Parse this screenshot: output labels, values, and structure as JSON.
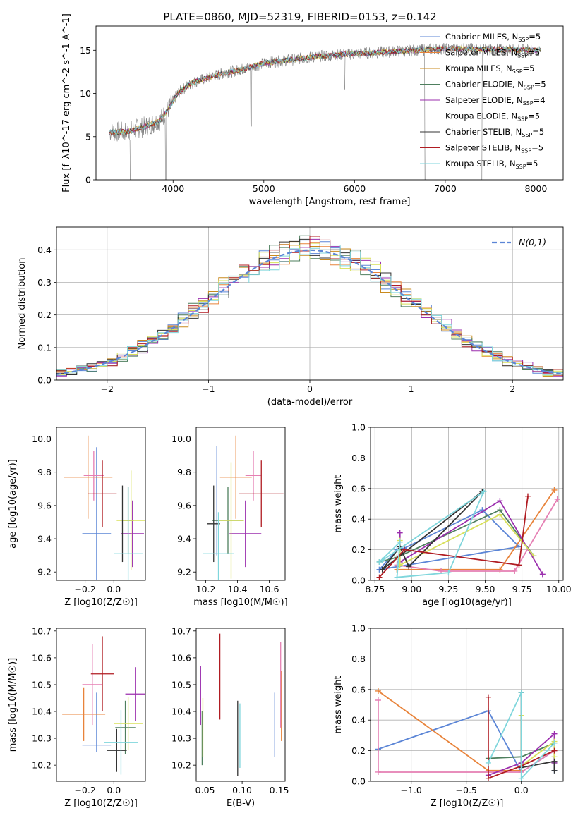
{
  "title": "PLATE=0860, MJD=52319, FIBERID=0153, z=0.142",
  "colors": {
    "chab_miles": "#5b85d6",
    "salp_miles": "#e8833a",
    "krou_miles": "#c98a1e",
    "chab_elodie": "#4e7f5e",
    "salp_elodie": "#9b2fae",
    "krou_elodie": "#d8e05a",
    "chab_stelib": "#333333",
    "salp_stelib": "#b01c22",
    "krou_stelib": "#7fd6dc",
    "pink": "#e57fb3",
    "gray_spec": "#7f7f7f",
    "normal": "#5b85d6",
    "grid": "#b0b0b0"
  },
  "chart_data": [
    {
      "id": "spectrum",
      "type": "line",
      "xlabel": "wavelength [Angstrom, rest frame]",
      "ylabel": "Flux [f_λ10^-17 erg cm^-2 s^-1 A^-1]",
      "xlim": [
        3150,
        8300
      ],
      "ylim": [
        0,
        17.8
      ],
      "xticks": [
        4000,
        5000,
        6000,
        7000,
        8000
      ],
      "yticks": [
        0,
        5,
        10,
        15
      ],
      "legend_position": "top-right",
      "continuum": [
        [
          3300,
          5.5
        ],
        [
          3500,
          5.6
        ],
        [
          3700,
          6.2
        ],
        [
          3850,
          6.8
        ],
        [
          3950,
          8.2
        ],
        [
          4050,
          10.0
        ],
        [
          4200,
          11.2
        ],
        [
          4500,
          12.2
        ],
        [
          4800,
          12.9
        ],
        [
          5000,
          13.5
        ],
        [
          5300,
          13.9
        ],
        [
          5600,
          14.3
        ],
        [
          6000,
          14.6
        ],
        [
          6500,
          14.9
        ],
        [
          7000,
          15.2
        ],
        [
          7500,
          15.1
        ],
        [
          8000,
          15.0
        ],
        [
          8050,
          15.0
        ]
      ],
      "dips": [
        [
          3530,
          0
        ],
        [
          3920,
          0
        ],
        [
          4860,
          6.2
        ],
        [
          5890,
          10.5
        ],
        [
          6780,
          0
        ],
        [
          7400,
          0
        ]
      ],
      "legend": [
        {
          "label": "Chabrier MILES, N_SSP=5",
          "color_key": "chab_miles"
        },
        {
          "label": "Salpeter MILES, N_SSP=5",
          "color_key": "salp_miles"
        },
        {
          "label": "Kroupa MILES, N_SSP=5",
          "color_key": "krou_miles"
        },
        {
          "label": "Chabrier ELODIE, N_SSP=5",
          "color_key": "chab_elodie"
        },
        {
          "label": "Salpeter ELODIE, N_SSP=4",
          "color_key": "salp_elodie"
        },
        {
          "label": "Kroupa ELODIE, N_SSP=5",
          "color_key": "krou_elodie"
        },
        {
          "label": "Chabrier STELIB, N_SSP=5",
          "color_key": "chab_stelib"
        },
        {
          "label": "Salpeter STELIB, N_SSP=5",
          "color_key": "salp_stelib"
        },
        {
          "label": "Kroupa STELIB, N_SSP=5",
          "color_key": "krou_stelib"
        }
      ]
    },
    {
      "id": "residuals",
      "type": "bar",
      "xlabel": "(data-model)/error",
      "ylabel": "Normed distribution",
      "xlim": [
        -2.5,
        2.5
      ],
      "ylim": [
        0,
        0.47
      ],
      "xticks": [
        -2,
        -1,
        0,
        1,
        2
      ],
      "yticks": [
        0.0,
        0.1,
        0.2,
        0.3,
        0.4
      ],
      "legend": [
        {
          "label": "N(0,1)",
          "color_key": "normal"
        }
      ],
      "legend_position": "top-right",
      "bin_width": 0.1,
      "bin_start": -2.5
    },
    {
      "id": "z_age",
      "type": "scatter",
      "xlabel": "Z [log10(Z/Z☉)]",
      "ylabel": "age  [log10(age/yr)]",
      "xlim": [
        -0.4,
        0.22
      ],
      "ylim": [
        9.15,
        10.07
      ],
      "xticks": [
        -0.2,
        0.0
      ],
      "yticks": [
        9.2,
        9.4,
        9.6,
        9.8,
        10.0
      ],
      "points": [
        {
          "color_key": "chab_miles",
          "x": -0.12,
          "xe": 0.1,
          "y": 9.43,
          "ye": 0.52
        },
        {
          "color_key": "salp_miles",
          "x": -0.18,
          "xe": 0.17,
          "y": 9.77,
          "ye": 0.25
        },
        {
          "color_key": "pink",
          "x": -0.14,
          "xe": 0.07,
          "y": 9.78,
          "ye": 0.15
        },
        {
          "color_key": "chab_elodie",
          "x": 0.1,
          "xe": 0.04,
          "y": 9.51,
          "ye": 0.2
        },
        {
          "color_key": "salp_elodie",
          "x": 0.13,
          "xe": 0.08,
          "y": 9.43,
          "ye": 0.2
        },
        {
          "color_key": "krou_elodie",
          "x": 0.12,
          "xe": 0.1,
          "y": 9.51,
          "ye": 0.3
        },
        {
          "color_key": "chab_stelib",
          "x": 0.06,
          "xe": 0.0,
          "y": 9.49,
          "ye": 0.23
        },
        {
          "color_key": "salp_stelib",
          "x": -0.08,
          "xe": 0.1,
          "y": 9.67,
          "ye": 0.2
        },
        {
          "color_key": "krou_stelib",
          "x": 0.1,
          "xe": 0.1,
          "y": 9.31,
          "ye": 0.4
        }
      ]
    },
    {
      "id": "mass_age",
      "type": "scatter",
      "xlabel": "mass [log10(M/M☉)]",
      "ylabel": "",
      "xlim": [
        10.14,
        10.7
      ],
      "ylim": [
        9.15,
        10.07
      ],
      "xticks": [
        10.2,
        10.4,
        10.6
      ],
      "yticks": [
        9.2,
        9.4,
        9.6,
        9.8,
        10.0
      ],
      "points": [
        {
          "color_key": "chab_miles",
          "x": 10.27,
          "xe": 0.0,
          "y": 9.63,
          "ye": 0.33
        },
        {
          "color_key": "salp_miles",
          "x": 10.39,
          "xe": 0.1,
          "y": 9.77,
          "ye": 0.25
        },
        {
          "color_key": "pink",
          "x": 10.5,
          "xe": 0.05,
          "y": 9.78,
          "ye": 0.15
        },
        {
          "color_key": "chab_elodie",
          "x": 10.34,
          "xe": 0.1,
          "y": 9.51,
          "ye": 0.2
        },
        {
          "color_key": "salp_elodie",
          "x": 10.45,
          "xe": 0.1,
          "y": 9.43,
          "ye": 0.2
        },
        {
          "color_key": "krou_elodie",
          "x": 10.36,
          "xe": 0.08,
          "y": 9.51,
          "ye": 0.35
        },
        {
          "color_key": "chab_stelib",
          "x": 10.25,
          "xe": 0.04,
          "y": 9.49,
          "ye": 0.23
        },
        {
          "color_key": "salp_stelib",
          "x": 10.55,
          "xe": 0.14,
          "y": 9.67,
          "ye": 0.2
        },
        {
          "color_key": "krou_stelib",
          "x": 10.28,
          "xe": 0.1,
          "y": 9.31,
          "ye": 0.25
        }
      ]
    },
    {
      "id": "age_weight",
      "type": "line",
      "xlabel": "age  [log10(age/yr)]",
      "ylabel": "mass weight",
      "xlim": [
        8.72,
        10.03
      ],
      "ylim": [
        0,
        1
      ],
      "xticks": [
        8.75,
        9.0,
        9.25,
        9.5,
        9.75,
        10.0
      ],
      "yticks": [
        0.0,
        0.2,
        0.4,
        0.6,
        0.8,
        1.0
      ],
      "series": [
        {
          "color_key": "chab_miles",
          "x": [
            8.78,
            8.9,
            8.95,
            9.48,
            9.73,
            8.78
          ],
          "y": [
            0.07,
            0.2,
            0.21,
            0.46,
            0.22,
            0.07
          ]
        },
        {
          "color_key": "salp_miles",
          "x": [
            8.9,
            8.9,
            9.6,
            9.97
          ],
          "y": [
            0.07,
            0.07,
            0.07,
            0.59
          ]
        },
        {
          "color_key": "pink",
          "x": [
            8.9,
            9.2,
            9.7,
            9.99
          ],
          "y": [
            0.1,
            0.06,
            0.06,
            0.53
          ]
        },
        {
          "color_key": "chab_elodie",
          "x": [
            8.78,
            8.9,
            9.6,
            9.83
          ],
          "y": [
            0.12,
            0.15,
            0.46,
            0.16
          ]
        },
        {
          "color_key": "salp_elodie",
          "x": [
            8.92,
            8.92,
            9.6,
            9.89
          ],
          "y": [
            0.31,
            0.12,
            0.52,
            0.04
          ]
        },
        {
          "color_key": "krou_elodie",
          "x": [
            8.92,
            8.92,
            9.6,
            9.83
          ],
          "y": [
            0.26,
            0.1,
            0.43,
            0.16
          ]
        },
        {
          "color_key": "chab_stelib",
          "x": [
            8.92,
            8.98,
            9.48,
            8.8,
            8.92
          ],
          "y": [
            0.22,
            0.09,
            0.58,
            0.07,
            0.22
          ]
        },
        {
          "color_key": "salp_stelib",
          "x": [
            8.78,
            8.95,
            9.73,
            9.79
          ],
          "y": [
            0.02,
            0.2,
            0.1,
            0.55
          ]
        },
        {
          "color_key": "krou_stelib",
          "x": [
            8.78,
            8.92,
            8.9,
            9.25,
            9.49,
            8.8
          ],
          "y": [
            0.12,
            0.25,
            0.02,
            0.05,
            0.58,
            0.13
          ]
        }
      ]
    },
    {
      "id": "z_mass",
      "type": "scatter",
      "xlabel": "Z [log10(Z/Z☉)]",
      "ylabel": "mass [log10(M/M☉)]",
      "xlim": [
        -0.4,
        0.22
      ],
      "ylim": [
        10.14,
        10.71
      ],
      "xticks": [
        -0.2,
        0.0
      ],
      "yticks": [
        10.2,
        10.3,
        10.4,
        10.5,
        10.6,
        10.7
      ],
      "points": [
        {
          "color_key": "chab_miles",
          "x": -0.12,
          "xe": 0.1,
          "y": 10.275,
          "ye": 0.0
        },
        {
          "color_key": "chab_miles",
          "x": -0.12,
          "xe": 0.0,
          "y": 10.36,
          "ye": 0.11
        },
        {
          "color_key": "salp_miles",
          "x": -0.21,
          "xe": 0.15,
          "y": 10.39,
          "ye": 0.1
        },
        {
          "color_key": "pink",
          "x": -0.15,
          "xe": 0.07,
          "y": 10.5,
          "ye": 0.15
        },
        {
          "color_key": "chab_elodie",
          "x": 0.08,
          "xe": 0.07,
          "y": 10.34,
          "ye": 0.1
        },
        {
          "color_key": "salp_elodie",
          "x": 0.15,
          "xe": 0.07,
          "y": 10.465,
          "ye": 0.1
        },
        {
          "color_key": "krou_elodie",
          "x": 0.1,
          "xe": 0.1,
          "y": 10.355,
          "ye": 0.1
        },
        {
          "color_key": "chab_stelib",
          "x": 0.02,
          "xe": 0.07,
          "y": 10.255,
          "ye": 0.08
        },
        {
          "color_key": "salp_stelib",
          "x": -0.08,
          "xe": 0.08,
          "y": 10.54,
          "ye": 0.14
        },
        {
          "color_key": "krou_stelib",
          "x": 0.05,
          "xe": 0.12,
          "y": 10.285,
          "ye": 0.12
        }
      ]
    },
    {
      "id": "ebv_mass",
      "type": "scatter",
      "xlabel": "E(B-V)",
      "ylabel": "",
      "xlim": [
        0.038,
        0.158
      ],
      "ylim": [
        10.14,
        10.71
      ],
      "xticks": [
        0.05,
        0.1,
        0.15
      ],
      "yticks": [
        10.2,
        10.3,
        10.4,
        10.5,
        10.6,
        10.7
      ],
      "points": [
        {
          "color_key": "chab_miles",
          "x": 0.144,
          "xe": 0.0,
          "y": 10.35,
          "ye": 0.12
        },
        {
          "color_key": "salp_miles",
          "x": 0.153,
          "xe": 0.0,
          "y": 10.42,
          "ye": 0.13
        },
        {
          "color_key": "pink",
          "x": 0.152,
          "xe": 0.0,
          "y": 10.5,
          "ye": 0.16
        },
        {
          "color_key": "chab_elodie",
          "x": 0.046,
          "xe": 0.0,
          "y": 10.3,
          "ye": 0.1
        },
        {
          "color_key": "salp_elodie",
          "x": 0.044,
          "xe": 0.0,
          "y": 10.46,
          "ye": 0.11
        },
        {
          "color_key": "krou_elodie",
          "x": 0.047,
          "xe": 0.0,
          "y": 10.34,
          "ye": 0.11
        },
        {
          "color_key": "chab_stelib",
          "x": 0.094,
          "xe": 0.0,
          "y": 10.3,
          "ye": 0.14
        },
        {
          "color_key": "salp_stelib",
          "x": 0.07,
          "xe": 0.0,
          "y": 10.53,
          "ye": 0.16
        },
        {
          "color_key": "krou_stelib",
          "x": 0.097,
          "xe": 0.0,
          "y": 10.31,
          "ye": 0.12
        }
      ]
    },
    {
      "id": "z_weight",
      "type": "line",
      "xlabel": "Z [log10(Z/Z☉)]",
      "ylabel": "mass weight",
      "xlim": [
        -1.37,
        0.38
      ],
      "ylim": [
        0,
        1
      ],
      "xticks": [
        -1.0,
        -0.5,
        0.0
      ],
      "yticks": [
        0.0,
        0.2,
        0.4,
        0.6,
        0.8,
        1.0
      ],
      "series": [
        {
          "color_key": "chab_miles",
          "x": [
            -1.3,
            -0.3,
            0.0,
            0.3,
            0.3
          ],
          "y": [
            0.21,
            0.46,
            0.06,
            0.2,
            0.07
          ]
        },
        {
          "color_key": "salp_miles",
          "x": [
            -1.3,
            -0.3,
            0.0
          ],
          "y": [
            0.59,
            0.07,
            0.07
          ]
        },
        {
          "color_key": "pink",
          "x": [
            -1.3,
            -1.3,
            -0.3,
            0.0,
            0.3
          ],
          "y": [
            0.53,
            0.06,
            0.06,
            0.06,
            0.2
          ]
        },
        {
          "color_key": "chab_elodie",
          "x": [
            -0.3,
            0.0,
            0.3,
            0.3
          ],
          "y": [
            0.15,
            0.16,
            0.25,
            0.12
          ]
        },
        {
          "color_key": "salp_elodie",
          "x": [
            -0.3,
            0.0,
            0.3,
            0.3
          ],
          "y": [
            0.04,
            0.12,
            0.31,
            0.12
          ]
        },
        {
          "color_key": "krou_elodie",
          "x": [
            0.0,
            0.0,
            0.3,
            0.3
          ],
          "y": [
            0.43,
            0.1,
            0.26,
            0.16
          ]
        },
        {
          "color_key": "chab_stelib",
          "x": [
            0.0,
            0.0,
            0.3,
            0.3
          ],
          "y": [
            0.58,
            0.09,
            0.13,
            0.07
          ]
        },
        {
          "color_key": "salp_stelib",
          "x": [
            -0.3,
            -0.3,
            0.0,
            0.3
          ],
          "y": [
            0.55,
            0.02,
            0.1,
            0.2
          ]
        },
        {
          "color_key": "krou_stelib",
          "x": [
            -0.3,
            0.0,
            0.0,
            0.3
          ],
          "y": [
            0.12,
            0.58,
            0.02,
            0.25
          ]
        }
      ]
    }
  ]
}
